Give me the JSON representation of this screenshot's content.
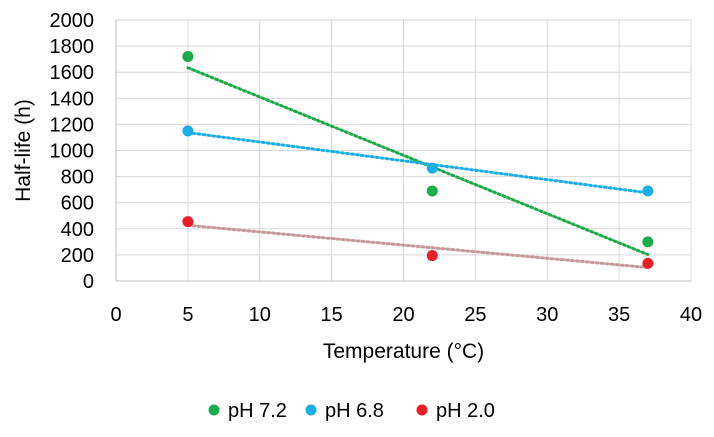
{
  "chart_data": {
    "type": "scatter",
    "title": "",
    "xlabel": "Temperature (°C)",
    "ylabel": "Half-life (h)",
    "xlim": [
      0,
      40
    ],
    "ylim": [
      0,
      2000
    ],
    "xticks": [
      0,
      5,
      10,
      15,
      20,
      25,
      30,
      35,
      40
    ],
    "yticks": [
      0,
      200,
      400,
      600,
      800,
      1000,
      1200,
      1400,
      1600,
      1800,
      2000
    ],
    "grid": true,
    "legend_position": "bottom",
    "series": [
      {
        "name": "pH 7.2",
        "color": "#1aab4a",
        "trend_color": "#1aab4a",
        "x": [
          5,
          22,
          37
        ],
        "y": [
          1720,
          690,
          300
        ]
      },
      {
        "name": "pH 6.8",
        "color": "#1aaee6",
        "trend_color": "#1aaee6",
        "x": [
          5,
          22,
          37
        ],
        "y": [
          1150,
          865,
          690
        ]
      },
      {
        "name": "pH 2.0",
        "color": "#ee1c24",
        "trend_color": "#c49a9a",
        "x": [
          5,
          22,
          37
        ],
        "y": [
          455,
          195,
          135
        ]
      }
    ]
  }
}
